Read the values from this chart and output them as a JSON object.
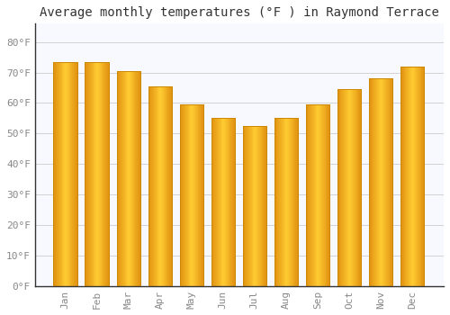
{
  "title": "Average monthly temperatures (°F ) in Raymond Terrace",
  "months": [
    "Jan",
    "Feb",
    "Mar",
    "Apr",
    "May",
    "Jun",
    "Jul",
    "Aug",
    "Sep",
    "Oct",
    "Nov",
    "Dec"
  ],
  "values": [
    73.5,
    73.5,
    70.5,
    65.5,
    59.5,
    55.0,
    52.5,
    55.0,
    59.5,
    64.5,
    68.0,
    72.0
  ],
  "bar_color_left": "#E8900A",
  "bar_color_center": "#FFCC44",
  "bar_color_right": "#E8900A",
  "background_color": "#FFFFFF",
  "plot_bg_color": "#F8F8FF",
  "grid_color": "#CCCCCC",
  "yticks": [
    0,
    10,
    20,
    30,
    40,
    50,
    60,
    70,
    80
  ],
  "ytick_labels": [
    "0°F",
    "10°F",
    "20°F",
    "30°F",
    "40°F",
    "50°F",
    "60°F",
    "70°F",
    "80°F"
  ],
  "ylim": [
    0,
    86
  ],
  "title_fontsize": 10,
  "tick_fontsize": 8,
  "tick_color": "#888888",
  "spine_color": "#333333",
  "bar_width": 0.75
}
